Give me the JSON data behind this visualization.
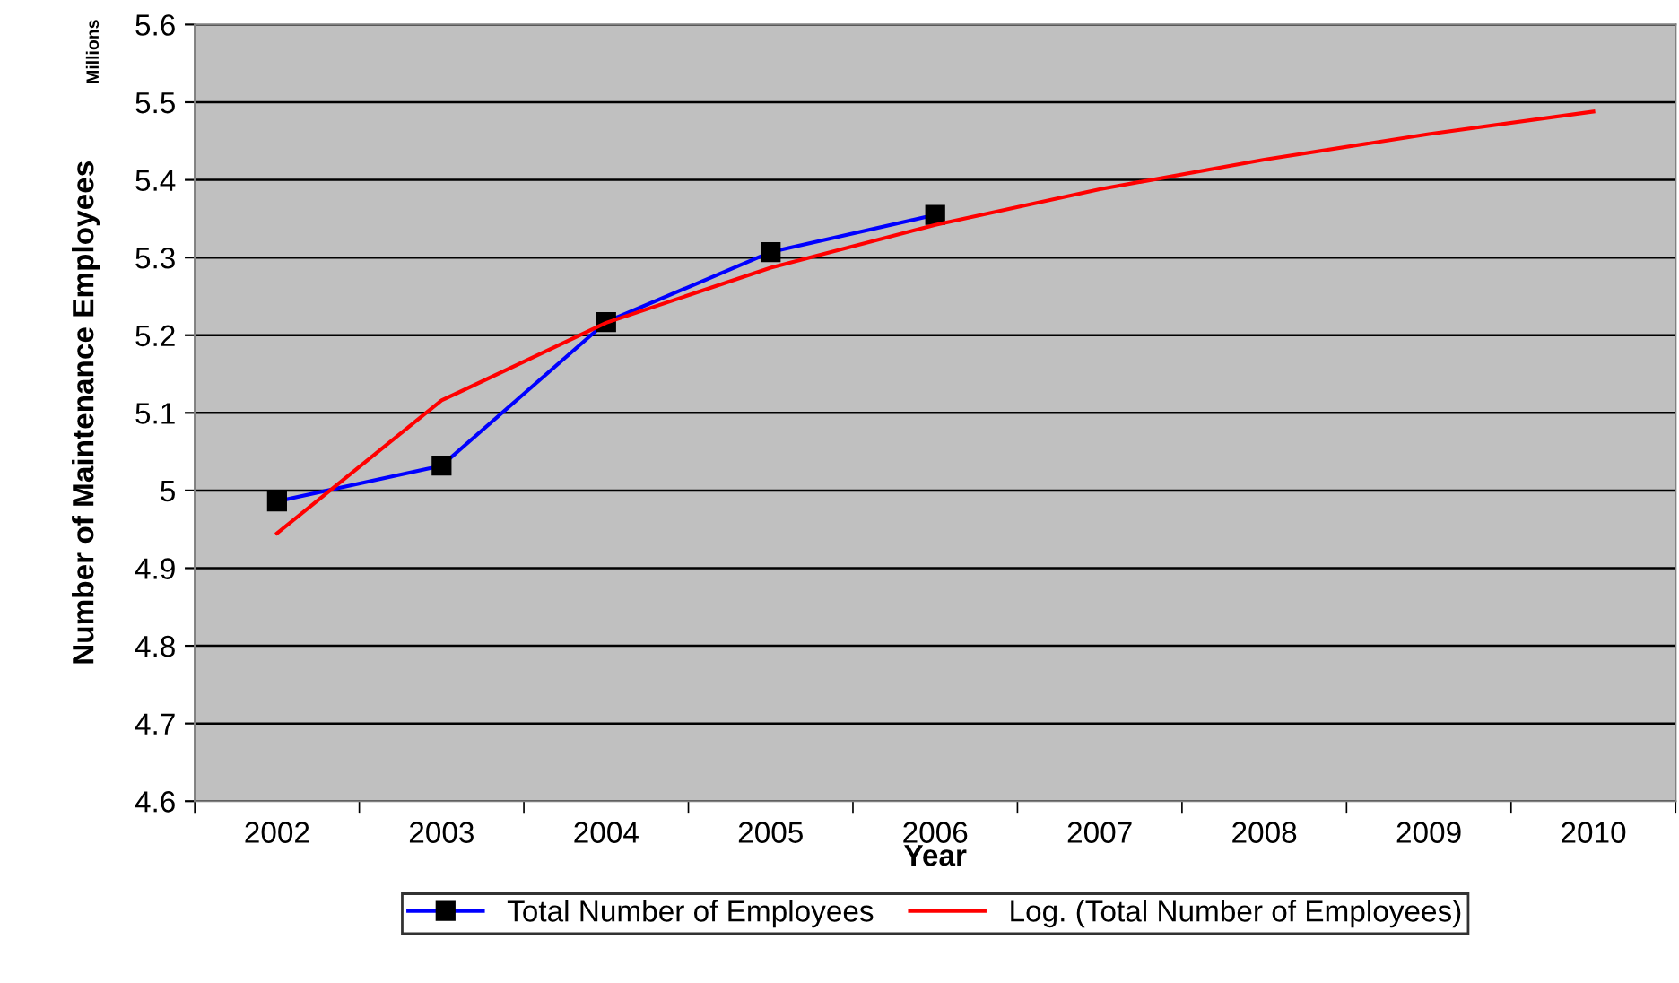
{
  "chart_data": {
    "type": "line",
    "xlabel": "Year",
    "ylabel": "Number of Maintenance Employees",
    "annotations": [
      "Millions"
    ],
    "categories": [
      "2002",
      "2003",
      "2004",
      "2005",
      "2006",
      "2007",
      "2008",
      "2009",
      "2010"
    ],
    "series": [
      {
        "name": "Total Number of Employees",
        "color": "#0000ff",
        "marker": "square",
        "values": [
          4.986,
          5.032,
          5.217,
          5.307,
          5.355,
          null,
          null,
          null,
          null
        ]
      },
      {
        "name": "Log. (Total Number of Employees)",
        "color": "#ff0000",
        "marker": "none",
        "values": [
          4.945,
          5.116,
          5.216,
          5.287,
          5.342,
          5.388,
          5.426,
          5.459,
          5.488
        ]
      }
    ],
    "ylim": [
      4.6,
      5.6
    ],
    "yticks": [
      4.6,
      4.7,
      4.8,
      4.9,
      5,
      5.1,
      5.2,
      5.3,
      5.4,
      5.5,
      5.6
    ],
    "grid": "y",
    "legend": "bottom"
  }
}
